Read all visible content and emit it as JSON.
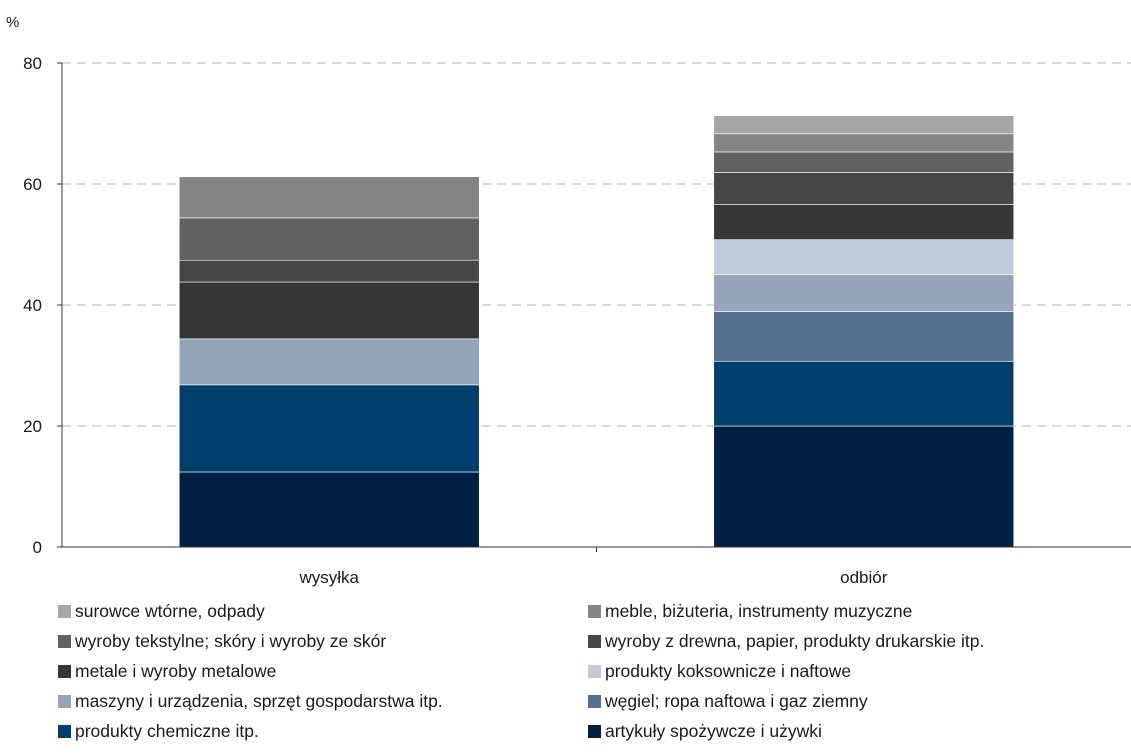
{
  "chart_data": {
    "type": "bar",
    "stacked": true,
    "unit_label": "%",
    "categories": [
      "wysyłka",
      "odbiór"
    ],
    "ylim": [
      0,
      80
    ],
    "yticks": [
      "0",
      "20",
      "40",
      "60",
      "80"
    ],
    "grid": true,
    "legend_placement": "bottom",
    "series": [
      {
        "name": "artykuły spożywcze i używki",
        "color": "#021f44",
        "values": [
          12.4,
          20.0
        ]
      },
      {
        "name": "produkty chemiczne itp.",
        "color": "#003e6b",
        "values": [
          14.4,
          10.7
        ]
      },
      {
        "name": "węgiel; ropa naftowa i gaz ziemny",
        "color": "#54708f",
        "values": [
          0,
          8.2
        ]
      },
      {
        "name": "maszyny i urządzenia, sprzęt gospodarstwa itp.",
        "color": "#94a5ba",
        "values": [
          7.6,
          6.1
        ]
      },
      {
        "name": "produkty koksownicze i naftowe",
        "color": "#bfcbd8",
        "values": [
          0,
          5.8
        ]
      },
      {
        "name": "metale i wyroby metalowe",
        "color": "#363636",
        "values": [
          9.4,
          5.8
        ]
      },
      {
        "name": "wyroby z drewna, papier, produkty drukarskie itp.",
        "color": "#464646",
        "values": [
          3.6,
          5.3
        ]
      },
      {
        "name": "wyroby tekstylne; skóry i wyroby ze skór",
        "color": "#616161",
        "values": [
          7.0,
          3.4
        ]
      },
      {
        "name": "meble, biżuteria, instrumenty muzyczne",
        "color": "#848484",
        "values": [
          6.8,
          3.0
        ]
      },
      {
        "name": "surowce wtórne, odpady",
        "color": "#a6a6a6",
        "values": [
          0,
          3.0
        ]
      }
    ],
    "legend_order": [
      9,
      8,
      7,
      6,
      5,
      4,
      3,
      2,
      1,
      0
    ]
  }
}
